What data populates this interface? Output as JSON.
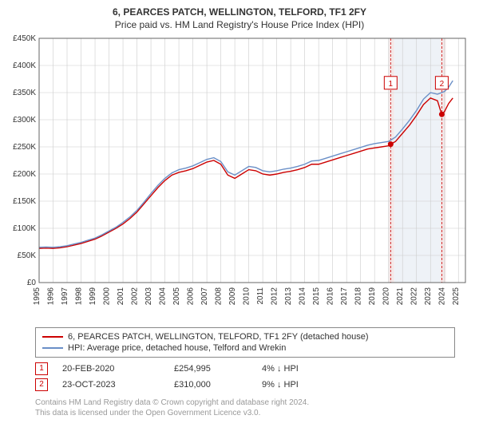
{
  "title": "6, PEARCES PATCH, WELLINGTON, TELFORD, TF1 2FY",
  "subtitle": "Price paid vs. HM Land Registry's House Price Index (HPI)",
  "chart": {
    "type": "line",
    "background_color": "#ffffff",
    "grid_color": "#cccccc",
    "plot_bg": "#ffffff",
    "shaded_regions": [
      {
        "x_start": 2020.0,
        "x_end": 2020.4,
        "color": "#f4e8e8"
      },
      {
        "x_start": 2020.4,
        "x_end": 2023.7,
        "color": "#eef2f7"
      },
      {
        "x_start": 2023.7,
        "x_end": 2024.1,
        "color": "#f4e8e8"
      }
    ],
    "ylim": [
      0,
      450000
    ],
    "ytick_step": 50000,
    "ytick_labels": [
      "£0",
      "£50K",
      "£100K",
      "£150K",
      "£200K",
      "£250K",
      "£300K",
      "£350K",
      "£400K",
      "£450K"
    ],
    "xlim": [
      1995,
      2025.5
    ],
    "xticks": [
      1995,
      1996,
      1997,
      1998,
      1999,
      2000,
      2001,
      2002,
      2003,
      2004,
      2005,
      2006,
      2007,
      2008,
      2009,
      2010,
      2011,
      2012,
      2013,
      2014,
      2015,
      2016,
      2017,
      2018,
      2019,
      2020,
      2021,
      2022,
      2023,
      2024,
      2025
    ],
    "series": [
      {
        "name": "price_paid",
        "color": "#cc0000",
        "width": 1.4,
        "points": [
          [
            1995.0,
            63000
          ],
          [
            1995.5,
            63500
          ],
          [
            1996.0,
            63000
          ],
          [
            1996.5,
            64000
          ],
          [
            1997.0,
            66000
          ],
          [
            1997.5,
            69000
          ],
          [
            1998.0,
            72000
          ],
          [
            1998.5,
            76000
          ],
          [
            1999.0,
            80000
          ],
          [
            1999.5,
            86000
          ],
          [
            2000.0,
            93000
          ],
          [
            2000.5,
            100000
          ],
          [
            2001.0,
            108000
          ],
          [
            2001.5,
            118000
          ],
          [
            2002.0,
            130000
          ],
          [
            2002.5,
            145000
          ],
          [
            2003.0,
            160000
          ],
          [
            2003.5,
            175000
          ],
          [
            2004.0,
            188000
          ],
          [
            2004.5,
            198000
          ],
          [
            2005.0,
            203000
          ],
          [
            2005.5,
            206000
          ],
          [
            2006.0,
            210000
          ],
          [
            2006.5,
            216000
          ],
          [
            2007.0,
            222000
          ],
          [
            2007.5,
            225000
          ],
          [
            2008.0,
            218000
          ],
          [
            2008.5,
            198000
          ],
          [
            2009.0,
            192000
          ],
          [
            2009.5,
            200000
          ],
          [
            2010.0,
            208000
          ],
          [
            2010.5,
            206000
          ],
          [
            2011.0,
            200000
          ],
          [
            2011.5,
            198000
          ],
          [
            2012.0,
            200000
          ],
          [
            2012.5,
            203000
          ],
          [
            2013.0,
            205000
          ],
          [
            2013.5,
            208000
          ],
          [
            2014.0,
            212000
          ],
          [
            2014.5,
            218000
          ],
          [
            2015.0,
            218000
          ],
          [
            2015.5,
            222000
          ],
          [
            2016.0,
            226000
          ],
          [
            2016.5,
            230000
          ],
          [
            2017.0,
            234000
          ],
          [
            2017.5,
            238000
          ],
          [
            2018.0,
            242000
          ],
          [
            2018.5,
            246000
          ],
          [
            2019.0,
            248000
          ],
          [
            2019.5,
            250000
          ],
          [
            2020.0,
            252000
          ],
          [
            2020.15,
            254995
          ],
          [
            2020.5,
            260000
          ],
          [
            2021.0,
            275000
          ],
          [
            2021.5,
            290000
          ],
          [
            2022.0,
            308000
          ],
          [
            2022.5,
            328000
          ],
          [
            2023.0,
            340000
          ],
          [
            2023.5,
            335000
          ],
          [
            2023.8,
            310000
          ],
          [
            2024.0,
            315000
          ],
          [
            2024.3,
            330000
          ],
          [
            2024.6,
            340000
          ]
        ]
      },
      {
        "name": "hpi",
        "color": "#6a8fc7",
        "width": 1.4,
        "points": [
          [
            1995.0,
            65000
          ],
          [
            1995.5,
            65500
          ],
          [
            1996.0,
            65000
          ],
          [
            1996.5,
            66000
          ],
          [
            1997.0,
            68000
          ],
          [
            1997.5,
            71000
          ],
          [
            1998.0,
            74000
          ],
          [
            1998.5,
            78000
          ],
          [
            1999.0,
            82000
          ],
          [
            1999.5,
            88000
          ],
          [
            2000.0,
            95000
          ],
          [
            2000.5,
            102000
          ],
          [
            2001.0,
            111000
          ],
          [
            2001.5,
            121000
          ],
          [
            2002.0,
            133000
          ],
          [
            2002.5,
            148000
          ],
          [
            2003.0,
            164000
          ],
          [
            2003.5,
            179000
          ],
          [
            2004.0,
            192000
          ],
          [
            2004.5,
            202000
          ],
          [
            2005.0,
            208000
          ],
          [
            2005.5,
            211000
          ],
          [
            2006.0,
            215000
          ],
          [
            2006.5,
            221000
          ],
          [
            2007.0,
            227000
          ],
          [
            2007.5,
            230000
          ],
          [
            2008.0,
            223000
          ],
          [
            2008.5,
            204000
          ],
          [
            2009.0,
            198000
          ],
          [
            2009.5,
            206000
          ],
          [
            2010.0,
            214000
          ],
          [
            2010.5,
            212000
          ],
          [
            2011.0,
            206000
          ],
          [
            2011.5,
            204000
          ],
          [
            2012.0,
            206000
          ],
          [
            2012.5,
            209000
          ],
          [
            2013.0,
            211000
          ],
          [
            2013.5,
            214000
          ],
          [
            2014.0,
            218000
          ],
          [
            2014.5,
            224000
          ],
          [
            2015.0,
            225000
          ],
          [
            2015.5,
            229000
          ],
          [
            2016.0,
            233000
          ],
          [
            2016.5,
            237000
          ],
          [
            2017.0,
            241000
          ],
          [
            2017.5,
            245000
          ],
          [
            2018.0,
            249000
          ],
          [
            2018.5,
            253000
          ],
          [
            2019.0,
            256000
          ],
          [
            2019.5,
            258000
          ],
          [
            2020.0,
            260000
          ],
          [
            2020.5,
            268000
          ],
          [
            2021.0,
            283000
          ],
          [
            2021.5,
            299000
          ],
          [
            2022.0,
            317000
          ],
          [
            2022.5,
            338000
          ],
          [
            2023.0,
            350000
          ],
          [
            2023.5,
            347000
          ],
          [
            2024.0,
            352000
          ],
          [
            2024.3,
            360000
          ],
          [
            2024.6,
            372000
          ]
        ]
      }
    ],
    "markers": [
      {
        "n": "1",
        "x": 2020.15,
        "y": 254995,
        "label_y": 368000
      },
      {
        "n": "2",
        "x": 2023.81,
        "y": 310000,
        "label_y": 368000
      }
    ],
    "marker_color": "#cc0000",
    "marker_label_bg": "#ffffff"
  },
  "legend": {
    "items": [
      {
        "color": "#cc0000",
        "label": "6, PEARCES PATCH, WELLINGTON, TELFORD, TF1 2FY (detached house)"
      },
      {
        "color": "#6a8fc7",
        "label": "HPI: Average price, detached house, Telford and Wrekin"
      }
    ]
  },
  "marker_table": [
    {
      "n": "1",
      "date": "20-FEB-2020",
      "price": "£254,995",
      "delta": "4% ↓ HPI"
    },
    {
      "n": "2",
      "date": "23-OCT-2023",
      "price": "£310,000",
      "delta": "9% ↓ HPI"
    }
  ],
  "footer_line1": "Contains HM Land Registry data © Crown copyright and database right 2024.",
  "footer_line2": "This data is licensed under the Open Government Licence v3.0."
}
